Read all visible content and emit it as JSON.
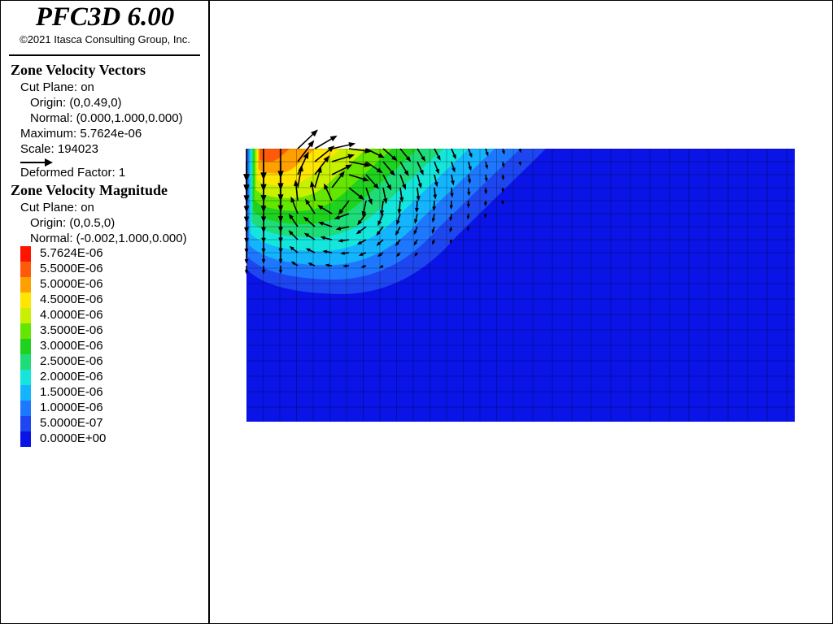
{
  "header": {
    "title": "PFC3D 6.00",
    "copyright": "©2021 Itasca Consulting Group, Inc."
  },
  "vectors": {
    "title": "Zone Velocity Vectors",
    "cut_plane": "Cut Plane: on",
    "origin": "Origin: (0,0.49,0)",
    "normal": "Normal: (0.000,1.000,0.000)",
    "maximum": "Maximum: 5.7624e-06",
    "scale": "Scale: 194023",
    "deformed": "Deformed Factor: 1"
  },
  "magnitude": {
    "title": "Zone Velocity Magnitude",
    "cut_plane": "Cut Plane: on",
    "origin": "Origin: (0,0.5,0)",
    "normal": "Normal: (-0.002,1.000,0.000)",
    "legend": [
      {
        "label": "5.7624E-06",
        "color": "#ff1400"
      },
      {
        "label": "5.5000E-06",
        "color": "#ff5a0a"
      },
      {
        "label": "5.0000E-06",
        "color": "#ffa000"
      },
      {
        "label": "4.5000E-06",
        "color": "#ffe600"
      },
      {
        "label": "4.0000E-06",
        "color": "#c8f000"
      },
      {
        "label": "3.5000E-06",
        "color": "#64e600"
      },
      {
        "label": "3.0000E-06",
        "color": "#1ed21e"
      },
      {
        "label": "2.5000E-06",
        "color": "#1edc78"
      },
      {
        "label": "2.0000E-06",
        "color": "#14e6dc"
      },
      {
        "label": "1.5000E-06",
        "color": "#14b4ff"
      },
      {
        "label": "1.0000E-06",
        "color": "#1e78ff"
      },
      {
        "label": "5.0000E-07",
        "color": "#1e46f0"
      },
      {
        "label": "0.0000E+00",
        "color": "#0a14e6"
      }
    ]
  }
}
